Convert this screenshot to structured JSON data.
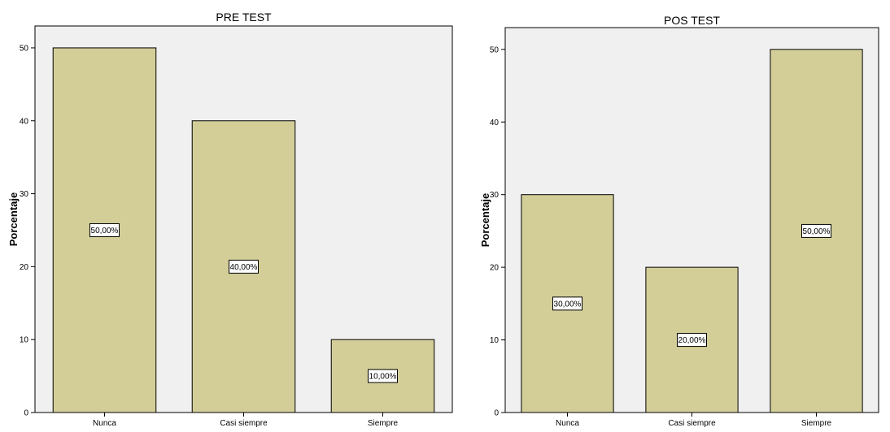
{
  "chart_data": [
    {
      "type": "bar",
      "title": "PRE TEST",
      "ylabel": "Porcentaje",
      "xlabel": "",
      "categories": [
        "Nunca",
        "Casi siempre",
        "Siempre"
      ],
      "values": [
        50,
        40,
        10
      ],
      "data_labels": [
        "50,00%",
        "40,00%",
        "10,00%"
      ],
      "ylim": [
        0,
        53
      ],
      "yticks": [
        0,
        10,
        20,
        30,
        40,
        50
      ],
      "bar_color": "#d3ce98",
      "plot_bg": "#f0f0f0",
      "grid": false,
      "legend": "none"
    },
    {
      "type": "bar",
      "title": "POS TEST",
      "ylabel": "Porcentaje",
      "xlabel": "",
      "categories": [
        "Nunca",
        "Casi siempre",
        "Siempre"
      ],
      "values": [
        30,
        20,
        50
      ],
      "data_labels": [
        "30,00%",
        "20,00%",
        "50,00%"
      ],
      "ylim": [
        0,
        53
      ],
      "yticks": [
        0,
        10,
        20,
        30,
        40,
        50
      ],
      "bar_color": "#d3ce98",
      "plot_bg": "#f0f0f0",
      "grid": false,
      "legend": "none"
    }
  ]
}
